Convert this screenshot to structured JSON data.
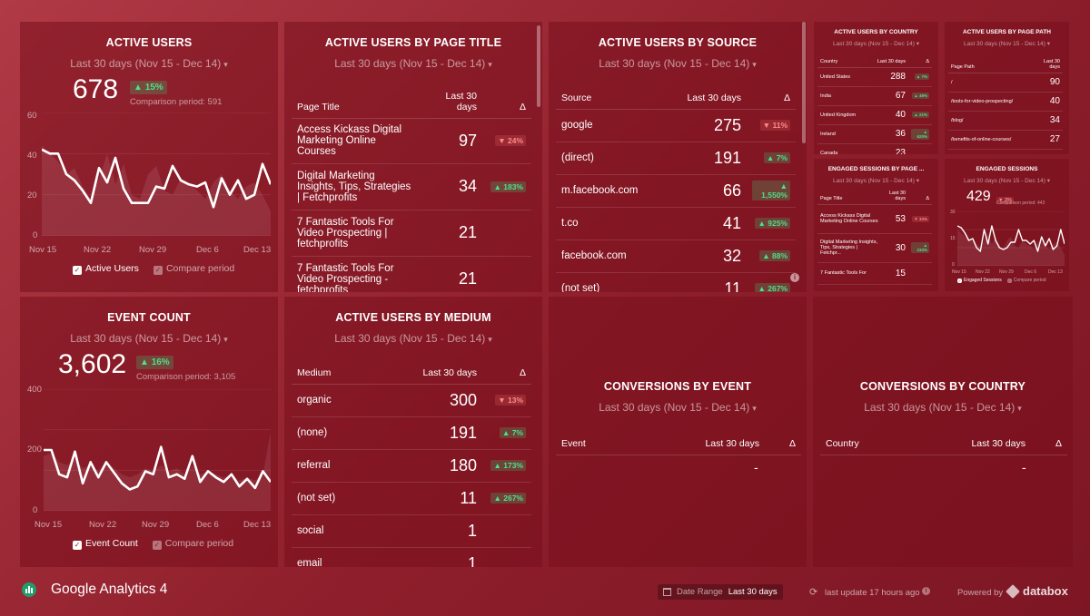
{
  "cards": {
    "active_users": {
      "title": "ACTIVE USERS",
      "range": "Last 30 days (Nov 15 - Dec 14)",
      "value": "678",
      "change": "15%",
      "comparison": "Comparison period: 591",
      "yticks": [
        "60",
        "40",
        "20",
        "0"
      ],
      "xticks": [
        "Nov 15",
        "Nov 22",
        "Nov 29",
        "Dec 6",
        "Dec 13"
      ],
      "legend_main": "Active Users",
      "legend_cmp": "Compare period",
      "chart_data": {
        "type": "line",
        "ylim": [
          0,
          60
        ],
        "series": [
          {
            "name": "Active Users",
            "values": [
              42,
              40,
              40,
              30,
              27,
              22,
              16,
              33,
              26,
              38,
              23,
              16,
              16,
              16,
              24,
              23,
              34,
              27,
              25,
              24,
              26,
              14,
              28,
              20,
              27,
              18,
              20,
              35,
              25
            ]
          },
          {
            "name": "Compare period",
            "values": [
              44,
              40,
              36,
              30,
              33,
              24,
              18,
              28,
              40,
              25,
              35,
              20,
              18,
              30,
              34,
              22,
              20,
              28,
              25,
              22,
              18,
              26,
              30,
              22,
              18,
              24,
              26,
              20,
              12
            ]
          }
        ]
      }
    },
    "event_count": {
      "title": "EVENT COUNT",
      "range": "Last 30 days (Nov 15 - Dec 14)",
      "value": "3,602",
      "change": "16%",
      "comparison": "Comparison period: 3,105",
      "yticks": [
        "400",
        "200",
        "0"
      ],
      "xticks": [
        "Nov 15",
        "Nov 22",
        "Nov 29",
        "Dec 6",
        "Dec 13"
      ],
      "legend_main": "Event Count",
      "legend_cmp": "Compare period",
      "chart_data": {
        "type": "line",
        "ylim": [
          0,
          400
        ],
        "series": [
          {
            "name": "Event Count",
            "values": [
              200,
              200,
              120,
              110,
              195,
              90,
              160,
              110,
              160,
              125,
              90,
              70,
              80,
              130,
              120,
              210,
              110,
              120,
              105,
              180,
              95,
              130,
              110,
              95,
              120,
              80,
              105,
              75,
              130,
              95
            ]
          },
          {
            "name": "Compare period",
            "values": [
              180,
              190,
              160,
              150,
              170,
              140,
              150,
              130,
              160,
              140,
              120,
              110,
              120,
              140,
              130,
              150,
              130,
              140,
              120,
              150,
              120,
              130,
              120,
              110,
              120,
              100,
              110,
              100,
              120,
              260
            ]
          }
        ]
      }
    },
    "page_title": {
      "title": "ACTIVE USERS BY PAGE TITLE",
      "range": "Last 30 days (Nov 15 - Dec 14)",
      "headers": [
        "Page Title",
        "Last 30 days",
        "Δ"
      ],
      "rows": [
        {
          "label": "Access Kickass Digital Marketing Online Courses",
          "value": "97",
          "delta": "24%",
          "dir": "down"
        },
        {
          "label": "Digital Marketing Insights, Tips, Strategies | Fetchprofits",
          "value": "34",
          "delta": "183%",
          "dir": "up"
        },
        {
          "label": "7 Fantastic Tools For Video Prospecting | fetchprofits",
          "value": "21",
          "delta": "",
          "dir": ""
        },
        {
          "label": "7 Fantastic Tools For Video Prospecting - fetchprofits",
          "value": "21",
          "delta": "",
          "dir": ""
        }
      ]
    },
    "source": {
      "title": "ACTIVE USERS BY SOURCE",
      "range": "Last 30 days (Nov 15 - Dec 14)",
      "headers": [
        "Source",
        "Last 30 days",
        "Δ"
      ],
      "rows": [
        {
          "label": "google",
          "value": "275",
          "delta": "11%",
          "dir": "down"
        },
        {
          "label": "(direct)",
          "value": "191",
          "delta": "7%",
          "dir": "up"
        },
        {
          "label": "m.facebook.com",
          "value": "66",
          "delta": "1,550%",
          "dir": "up"
        },
        {
          "label": "t.co",
          "value": "41",
          "delta": "925%",
          "dir": "up"
        },
        {
          "label": "facebook.com",
          "value": "32",
          "delta": "88%",
          "dir": "up"
        },
        {
          "label": "(not set)",
          "value": "11",
          "delta": "267%",
          "dir": "up"
        }
      ]
    },
    "medium": {
      "title": "ACTIVE USERS BY MEDIUM",
      "range": "Last 30 days (Nov 15 - Dec 14)",
      "headers": [
        "Medium",
        "Last 30 days",
        "Δ"
      ],
      "rows": [
        {
          "label": "organic",
          "value": "300",
          "delta": "13%",
          "dir": "down"
        },
        {
          "label": "(none)",
          "value": "191",
          "delta": "7%",
          "dir": "up"
        },
        {
          "label": "referral",
          "value": "180",
          "delta": "173%",
          "dir": "up"
        },
        {
          "label": "(not set)",
          "value": "11",
          "delta": "267%",
          "dir": "up"
        },
        {
          "label": "social",
          "value": "1",
          "delta": "",
          "dir": ""
        },
        {
          "label": "email",
          "value": "1",
          "delta": "",
          "dir": ""
        }
      ]
    },
    "conv_event": {
      "title": "CONVERSIONS BY EVENT",
      "range": "Last 30 days (Nov 15 - Dec 14)",
      "headers": [
        "Event",
        "Last 30 days",
        "Δ"
      ],
      "empty": "-"
    },
    "conv_country": {
      "title": "CONVERSIONS BY COUNTRY",
      "range": "Last 30 days (Nov 15 - Dec 14)",
      "headers": [
        "Country",
        "Last 30 days",
        "Δ"
      ],
      "empty": "-"
    },
    "country": {
      "title": "ACTIVE USERS BY COUNTRY",
      "range": "Last 30 days (Nov 15 - Dec 14)",
      "headers": [
        "Country",
        "Last 30 days",
        "Δ"
      ],
      "rows": [
        {
          "label": "United States",
          "value": "288",
          "delta": "7%",
          "dir": "up"
        },
        {
          "label": "India",
          "value": "67",
          "delta": "46%",
          "dir": "up"
        },
        {
          "label": "United Kingdom",
          "value": "40",
          "delta": "21%",
          "dir": "up"
        },
        {
          "label": "Ireland",
          "value": "36",
          "delta": "620%",
          "dir": "up"
        },
        {
          "label": "Canada",
          "value": "23",
          "delta": "",
          "dir": ""
        }
      ]
    },
    "page_path": {
      "title": "ACTIVE USERS BY PAGE PATH",
      "range": "Last 30 days (Nov 15 - Dec 14)",
      "headers": [
        "Page Path",
        "Last 30 days",
        "Δ"
      ],
      "rows": [
        {
          "label": "/",
          "value": "90",
          "delta": "",
          "dir": ""
        },
        {
          "label": "/tools-for-video-prospecting/",
          "value": "40",
          "delta": "",
          "dir": ""
        },
        {
          "label": "/blog/",
          "value": "34",
          "delta": "",
          "dir": ""
        },
        {
          "label": "/benefits-of-online-courses/",
          "value": "27",
          "delta": "",
          "dir": ""
        }
      ]
    },
    "engaged_page": {
      "title": "ENGAGED SESSIONS BY PAGE ...",
      "range": "Last 30 days (Nov 15 - Dec 14)",
      "headers": [
        "Page Title",
        "Last 30 days",
        "Δ"
      ],
      "rows": [
        {
          "label": "Access Kickass Digital Marketing Online Courses",
          "value": "53",
          "delta": "33%",
          "dir": "down"
        },
        {
          "label": "Digital Marketing Insights, Tips, Strategies | Fetchpr...",
          "value": "30",
          "delta": "233%",
          "dir": "up"
        },
        {
          "label": "7 Fantastic Tools For",
          "value": "15",
          "delta": "",
          "dir": ""
        }
      ]
    },
    "engaged": {
      "title": "ENGAGED SESSIONS",
      "range": "Last 30 days (Nov 15 - Dec 14)",
      "value": "429",
      "change": "3%",
      "comparison": "Comparison period: 442",
      "yticks": [
        "30",
        "15",
        "0"
      ],
      "xticks": [
        "Nov 15",
        "Nov 22",
        "Nov 29",
        "Dec 6",
        "Dec 13"
      ],
      "legend_main": "Engaged Sessions",
      "legend_cmp": "Compare period",
      "chart_data": {
        "type": "line",
        "ylim": [
          0,
          30
        ],
        "series": [
          {
            "name": "Engaged Sessions",
            "values": [
              22,
              21,
              18,
              14,
              15,
              10,
              8,
              20,
              12,
              22,
              14,
              10,
              9,
              10,
              13,
              13,
              20,
              14,
              14,
              12,
              14,
              8,
              16,
              11,
              15,
              9,
              11,
              20,
              12
            ]
          },
          {
            "name": "Compare period",
            "values": [
              20,
              18,
              16,
              14,
              15,
              12,
              10,
              14,
              18,
              12,
              16,
              10,
              9,
              14,
              16,
              11,
              10,
              14,
              12,
              11,
              9,
              13,
              15,
              11,
              9,
              12,
              13,
              10,
              6
            ]
          }
        ]
      }
    }
  },
  "footer": {
    "app_title": "Google Analytics 4",
    "date_range_label": "Date Range",
    "date_range_value": "Last 30 days",
    "last_update": "last update 17 hours ago",
    "powered_by": "Powered by",
    "brand": "databox"
  },
  "icons": {
    "up_arrow": "▲",
    "down_arrow": "▼",
    "chevron": "⌄"
  }
}
